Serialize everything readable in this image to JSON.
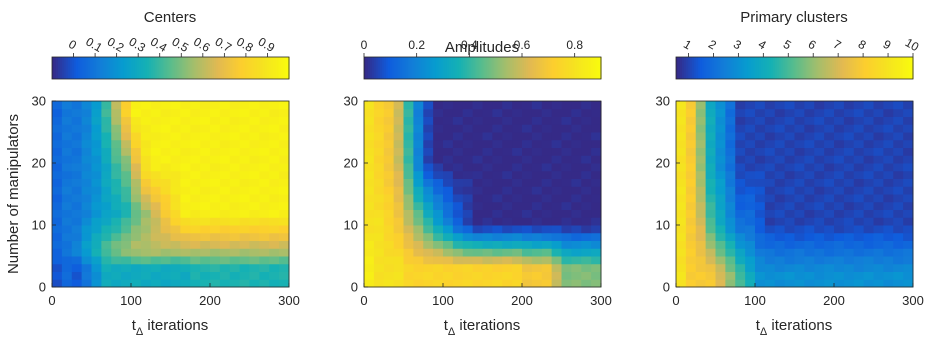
{
  "chart_data": [
    {
      "type": "heatmap",
      "title": "Centers",
      "xlabel": "t",
      "xlabel_subscript": "Δ",
      "xlabel_suffix": " iterations",
      "ylabel": "Number of manipulators",
      "xlim": [
        0,
        300
      ],
      "ylim": [
        0,
        30
      ],
      "x_ticks": [
        0,
        100,
        200,
        300
      ],
      "y_ticks": [
        0,
        10,
        20,
        30
      ],
      "colorbar": {
        "range": [
          -0.1,
          1.0
        ],
        "ticks": [
          0,
          0.1,
          0.2,
          0.3,
          0.4,
          0.5,
          0.6,
          0.7,
          0.8,
          0.9
        ],
        "tick_rotation": -30
      },
      "colormap": "parula",
      "grid_x_count": 24,
      "grid_y_count": 24,
      "pattern": "centers",
      "x_scale": 30,
      "y_scale": 1.45,
      "rows": [
        {
          "y": 3.0,
          "values": [
            0.0,
            0.05,
            0.0,
            0.1,
            0.2,
            0.3,
            0.3,
            0.3,
            0.3,
            0.3,
            0.3,
            0.3,
            0.3,
            0.3,
            0.35,
            0.35,
            0.35,
            0.35,
            0.35,
            0.35,
            0.35,
            0.35,
            0.35,
            0.35
          ]
        },
        {
          "y": 6.0,
          "values": [
            0.05,
            0.1,
            0.15,
            0.25,
            0.35,
            0.45,
            0.5,
            0.55,
            0.6,
            0.6,
            0.6,
            0.6,
            0.6,
            0.6,
            0.6,
            0.6,
            0.6,
            0.6,
            0.6,
            0.6,
            0.6,
            0.6,
            0.6,
            0.6
          ]
        },
        {
          "y": 12.0,
          "values": [
            0.05,
            0.1,
            0.1,
            0.15,
            0.2,
            0.25,
            0.3,
            0.35,
            0.45,
            0.55,
            0.65,
            0.75,
            0.85,
            0.95,
            0.95,
            0.95,
            0.95,
            0.95,
            0.95,
            0.95,
            0.95,
            0.95,
            0.95,
            0.95
          ]
        },
        {
          "y": 20.0,
          "values": [
            0.05,
            0.1,
            0.1,
            0.15,
            0.2,
            0.3,
            0.4,
            0.5,
            0.7,
            0.9,
            0.95,
            0.95,
            0.95,
            0.95,
            0.95,
            0.95,
            0.95,
            0.95,
            0.95,
            0.95,
            0.95,
            0.95,
            0.95,
            0.95
          ]
        },
        {
          "y": 28.0,
          "values": [
            0.05,
            0.1,
            0.1,
            0.15,
            0.25,
            0.4,
            0.6,
            0.8,
            0.95,
            0.95,
            0.95,
            0.95,
            0.95,
            0.95,
            0.95,
            0.95,
            0.95,
            0.95,
            0.95,
            0.95,
            0.95,
            0.95,
            0.95,
            0.95
          ]
        }
      ]
    },
    {
      "type": "heatmap",
      "title": "Amplitudes",
      "xlabel": "t",
      "xlabel_subscript": "Δ",
      "xlabel_suffix": " iterations",
      "ylabel": "",
      "xlim": [
        0,
        300
      ],
      "ylim": [
        0,
        30
      ],
      "x_ticks": [
        0,
        100,
        200,
        300
      ],
      "y_ticks": [
        0,
        10,
        20,
        30
      ],
      "colorbar": {
        "range": [
          0,
          0.9
        ],
        "ticks": [
          0,
          0.2,
          0.4,
          0.6,
          0.8
        ],
        "tick_rotation": 0
      },
      "colormap": "parula",
      "grid_x_count": 24,
      "grid_y_count": 24,
      "pattern": "amplitudes",
      "x_scale": 28,
      "y_scale": 1.2,
      "rows": [
        {
          "y": 3.0,
          "values": [
            0.85,
            0.8,
            0.8,
            0.8,
            0.75,
            0.75,
            0.75,
            0.75,
            0.75,
            0.75,
            0.75,
            0.75,
            0.75,
            0.75,
            0.75,
            0.75,
            0.7,
            0.7,
            0.7,
            0.6,
            0.5,
            0.5,
            0.5,
            0.5
          ]
        },
        {
          "y": 10.0,
          "values": [
            0.8,
            0.8,
            0.75,
            0.7,
            0.6,
            0.5,
            0.4,
            0.3,
            0.2,
            0.1,
            0.05,
            0.0,
            0.0,
            0.0,
            0.0,
            0.0,
            0.0,
            0.0,
            0.0,
            0.0,
            0.0,
            0.0,
            0.0,
            0.0
          ]
        },
        {
          "y": 20.0,
          "values": [
            0.8,
            0.75,
            0.7,
            0.6,
            0.4,
            0.2,
            0.05,
            0.0,
            0.0,
            0.0,
            0.0,
            0.0,
            0.0,
            0.0,
            0.0,
            0.0,
            0.0,
            0.0,
            0.0,
            0.0,
            0.0,
            0.0,
            0.0,
            0.0
          ]
        }
      ]
    },
    {
      "type": "heatmap",
      "title": "Primary clusters",
      "xlabel": "t",
      "xlabel_subscript": "Δ",
      "xlabel_suffix": " iterations",
      "ylabel": "",
      "xlim": [
        0,
        300
      ],
      "ylim": [
        0,
        30
      ],
      "x_ticks": [
        0,
        100,
        200,
        300
      ],
      "y_ticks": [
        0,
        10,
        20,
        30
      ],
      "colorbar": {
        "range": [
          0.5,
          10.0
        ],
        "ticks": [
          1,
          2,
          3,
          4,
          5,
          6,
          7,
          8,
          9,
          10
        ],
        "tick_rotation": -30
      },
      "colormap": "parula",
      "grid_x_count": 24,
      "grid_y_count": 24,
      "pattern": "clusters",
      "x_scale": 20,
      "y_scale": 0.9,
      "rows": [
        {
          "y": 2.0,
          "values": [
            9,
            8,
            8,
            8,
            7,
            6,
            5,
            4,
            3,
            3,
            3,
            3,
            3,
            3,
            3,
            3,
            3,
            3,
            3,
            3,
            3,
            3,
            3,
            3
          ]
        },
        {
          "y": 10.0,
          "values": [
            9,
            8,
            7,
            5,
            4,
            3,
            2,
            2,
            1.5,
            1,
            1,
            1,
            1,
            1,
            1,
            1,
            1,
            1,
            1,
            1,
            1,
            1,
            1,
            1
          ]
        },
        {
          "y": 20.0,
          "values": [
            9,
            8,
            6,
            4,
            3,
            2,
            1,
            1,
            1,
            1,
            1,
            1,
            1,
            1,
            1,
            1,
            1,
            1,
            1,
            1,
            1,
            1,
            1,
            1
          ]
        }
      ]
    }
  ]
}
